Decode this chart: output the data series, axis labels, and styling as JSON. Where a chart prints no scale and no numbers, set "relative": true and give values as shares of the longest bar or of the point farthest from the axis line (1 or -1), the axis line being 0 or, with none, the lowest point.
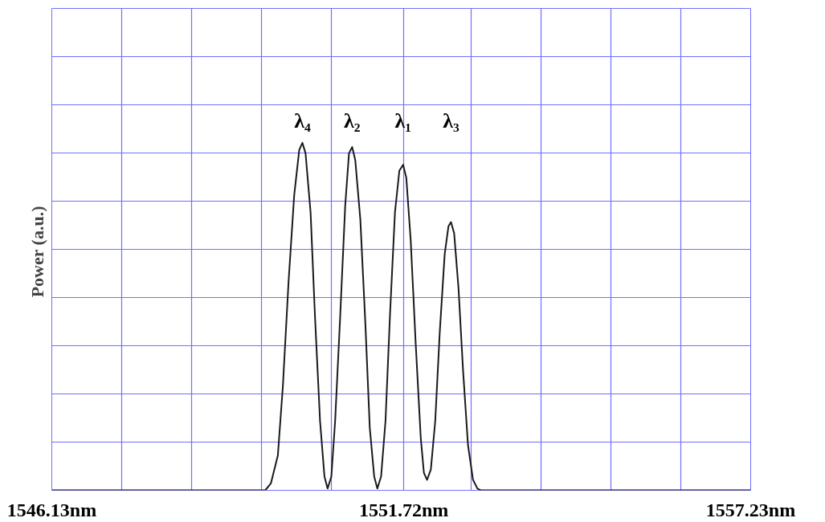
{
  "chart_data": {
    "type": "line",
    "relative": true,
    "ylabel": "Power  (a.u.)",
    "color": "#1a1a1a",
    "grid": true,
    "marker": "none",
    "line_style": "solid",
    "xlim": [
      1546.13,
      1557.23
    ],
    "xticks": [
      {
        "value": 1546.13,
        "label": "1546.13nm"
      },
      {
        "value": 1547.24,
        "label": null
      },
      {
        "value": 1548.35,
        "label": null
      },
      {
        "value": 1549.46,
        "label": null
      },
      {
        "value": 1550.57,
        "label": null
      },
      {
        "value": 1551.72,
        "label": "1551.72nm"
      },
      {
        "value": 1552.79,
        "label": null
      },
      {
        "value": 1553.9,
        "label": null
      },
      {
        "value": 1555.01,
        "label": null
      },
      {
        "value": 1556.12,
        "label": null
      },
      {
        "value": 1557.23,
        "label": "1557.23nm"
      }
    ],
    "x": [
      1546.13,
      1549.52,
      1549.61,
      1549.72,
      1549.8,
      1549.89,
      1549.98,
      1550.06,
      1550.11,
      1550.16,
      1550.24,
      1550.31,
      1550.39,
      1550.46,
      1550.51,
      1550.57,
      1550.63,
      1550.71,
      1550.79,
      1550.85,
      1550.9,
      1550.95,
      1551.03,
      1551.11,
      1551.18,
      1551.25,
      1551.3,
      1551.36,
      1551.43,
      1551.5,
      1551.58,
      1551.65,
      1551.71,
      1551.76,
      1551.83,
      1551.91,
      1551.99,
      1552.04,
      1552.09,
      1552.15,
      1552.22,
      1552.29,
      1552.37,
      1552.43,
      1552.47,
      1552.52,
      1552.59,
      1552.66,
      1552.74,
      1552.82,
      1552.89,
      1552.94,
      1557.23
    ],
    "values": [
      0,
      0,
      0.02,
      0.1,
      0.3,
      0.6,
      0.85,
      0.98,
      1,
      0.97,
      0.8,
      0.5,
      0.2,
      0.04,
      0.005,
      0.04,
      0.2,
      0.5,
      0.82,
      0.97,
      0.988,
      0.95,
      0.78,
      0.48,
      0.18,
      0.04,
      0.005,
      0.04,
      0.2,
      0.5,
      0.8,
      0.92,
      0.937,
      0.9,
      0.72,
      0.42,
      0.15,
      0.05,
      0.03,
      0.06,
      0.2,
      0.45,
      0.68,
      0.76,
      0.772,
      0.74,
      0.58,
      0.35,
      0.13,
      0.03,
      0.005,
      0,
      0
    ],
    "annotations": [
      "λ₄",
      "λ₂",
      "λ₁",
      "λ₃"
    ]
  }
}
